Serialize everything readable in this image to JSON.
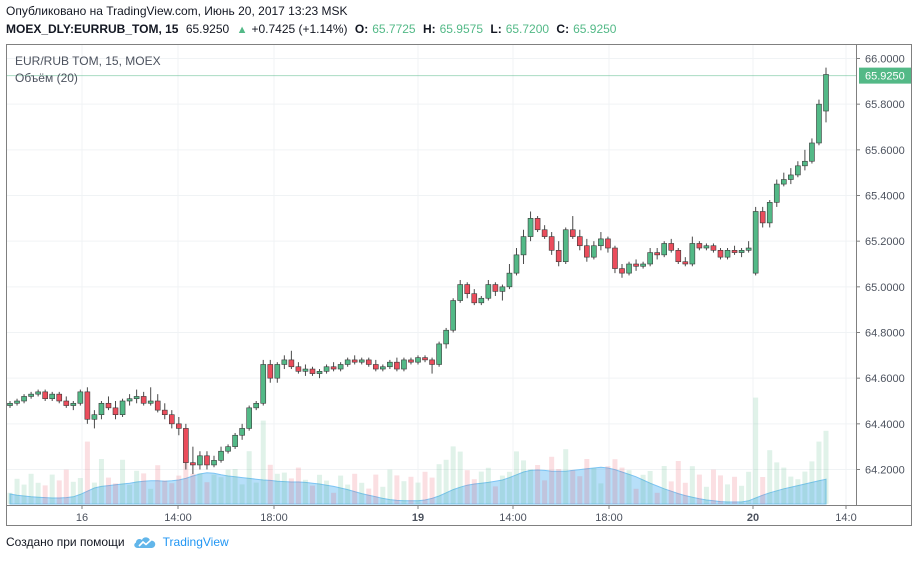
{
  "header": {
    "published": "Опубликовано на TradingView.com, Июнь 20, 2017 13:23 MSK",
    "symbol": "MOEX_DLY:EURRUB_TOM, 15",
    "last": "65.9250",
    "change": "+0.7425 (+1.14%)",
    "o_label": "O:",
    "o_value": "65.7725",
    "h_label": "H:",
    "h_value": "65.9575",
    "l_label": "L:",
    "l_value": "65.7200",
    "c_label": "C:",
    "c_value": "65.9250"
  },
  "legend": {
    "title": "EUR/RUB TOM, 15, MOEX",
    "volume": "Объём (20)"
  },
  "footer": {
    "created": "Создано при помощи",
    "brand": "TradingView"
  },
  "colors": {
    "up": "#53b987",
    "down": "#eb4d5c",
    "volume_area": "#7cc4f4",
    "grid": "#f0f3f5"
  },
  "chart_data": {
    "type": "candlestick",
    "price_ticks": [
      "66.0000",
      "65.8000",
      "65.6000",
      "65.4000",
      "65.2000",
      "65.0000",
      "64.8000",
      "64.6000",
      "64.4000",
      "64.2000"
    ],
    "time_ticks": [
      "16",
      "14:00",
      "18:00",
      "19",
      "14:00",
      "18:00",
      "20",
      "14:0"
    ],
    "last_price_label": "65.9250",
    "ylim": [
      64.05,
      66.05
    ],
    "candles": [
      [
        64.48,
        64.5,
        64.47,
        64.49
      ],
      [
        64.49,
        64.51,
        64.48,
        64.5
      ],
      [
        64.5,
        64.53,
        64.49,
        64.52
      ],
      [
        64.52,
        64.54,
        64.51,
        64.53
      ],
      [
        64.53,
        64.55,
        64.52,
        64.54
      ],
      [
        64.54,
        64.55,
        64.5,
        64.51
      ],
      [
        64.51,
        64.54,
        64.5,
        64.53
      ],
      [
        64.53,
        64.54,
        64.49,
        64.5
      ],
      [
        64.5,
        64.52,
        64.47,
        64.48
      ],
      [
        64.48,
        64.5,
        64.46,
        64.49
      ],
      [
        64.49,
        64.55,
        64.48,
        64.54
      ],
      [
        64.54,
        64.56,
        64.4,
        64.42
      ],
      [
        64.42,
        64.46,
        64.38,
        64.44
      ],
      [
        64.44,
        64.5,
        64.42,
        64.49
      ],
      [
        64.49,
        64.52,
        64.46,
        64.47
      ],
      [
        64.47,
        64.5,
        64.42,
        64.44
      ],
      [
        64.44,
        64.51,
        64.43,
        64.5
      ],
      [
        64.5,
        64.53,
        64.48,
        64.51
      ],
      [
        64.51,
        64.55,
        64.49,
        64.52
      ],
      [
        64.52,
        64.54,
        64.48,
        64.49
      ],
      [
        64.49,
        64.56,
        64.48,
        64.5
      ],
      [
        64.5,
        64.53,
        64.45,
        64.46
      ],
      [
        64.46,
        64.49,
        64.42,
        64.44
      ],
      [
        64.44,
        64.46,
        64.38,
        64.4
      ],
      [
        64.4,
        64.43,
        64.35,
        64.38
      ],
      [
        64.38,
        64.4,
        64.2,
        64.23
      ],
      [
        64.23,
        64.3,
        64.18,
        64.22
      ],
      [
        64.22,
        64.28,
        64.2,
        64.26
      ],
      [
        64.26,
        64.28,
        64.2,
        64.22
      ],
      [
        64.22,
        64.26,
        64.21,
        64.24
      ],
      [
        64.24,
        64.3,
        64.23,
        64.28
      ],
      [
        64.28,
        64.31,
        64.27,
        64.3
      ],
      [
        64.3,
        64.36,
        64.29,
        64.35
      ],
      [
        64.35,
        64.4,
        64.33,
        64.38
      ],
      [
        64.38,
        64.48,
        64.37,
        64.47
      ],
      [
        64.47,
        64.5,
        64.46,
        64.49
      ],
      [
        64.49,
        64.68,
        64.48,
        64.66
      ],
      [
        64.66,
        64.68,
        64.58,
        64.6
      ],
      [
        64.6,
        64.67,
        64.58,
        64.66
      ],
      [
        64.66,
        64.7,
        64.64,
        64.68
      ],
      [
        64.68,
        64.72,
        64.64,
        64.65
      ],
      [
        64.65,
        64.67,
        64.62,
        64.63
      ],
      [
        64.63,
        64.66,
        64.61,
        64.64
      ],
      [
        64.64,
        64.65,
        64.61,
        64.62
      ],
      [
        64.62,
        64.64,
        64.6,
        64.63
      ],
      [
        64.63,
        64.66,
        64.62,
        64.65
      ],
      [
        64.65,
        64.67,
        64.63,
        64.64
      ],
      [
        64.64,
        64.67,
        64.63,
        64.66
      ],
      [
        64.66,
        64.69,
        64.65,
        64.68
      ],
      [
        64.68,
        64.7,
        64.66,
        64.67
      ],
      [
        64.67,
        64.69,
        64.66,
        64.68
      ],
      [
        64.68,
        64.69,
        64.65,
        64.66
      ],
      [
        64.66,
        64.68,
        64.63,
        64.64
      ],
      [
        64.64,
        64.66,
        64.63,
        64.65
      ],
      [
        64.65,
        64.68,
        64.64,
        64.67
      ],
      [
        64.67,
        64.69,
        64.63,
        64.64
      ],
      [
        64.64,
        64.69,
        64.63,
        64.68
      ],
      [
        64.68,
        64.69,
        64.66,
        64.67
      ],
      [
        64.67,
        64.7,
        64.66,
        64.69
      ],
      [
        64.69,
        64.7,
        64.67,
        64.68
      ],
      [
        64.68,
        64.69,
        64.62,
        64.66
      ],
      [
        64.66,
        64.76,
        64.65,
        64.75
      ],
      [
        64.75,
        64.82,
        64.73,
        64.81
      ],
      [
        64.81,
        64.95,
        64.8,
        64.94
      ],
      [
        64.94,
        65.03,
        64.93,
        65.01
      ],
      [
        65.01,
        65.02,
        64.95,
        64.97
      ],
      [
        64.97,
        64.99,
        64.92,
        64.93
      ],
      [
        64.93,
        64.96,
        64.92,
        64.95
      ],
      [
        64.95,
        65.03,
        64.94,
        65.01
      ],
      [
        65.01,
        65.02,
        64.96,
        64.98
      ],
      [
        64.98,
        65.01,
        64.94,
        65.0
      ],
      [
        65.0,
        65.1,
        64.99,
        65.06
      ],
      [
        65.06,
        65.17,
        65.05,
        65.14
      ],
      [
        65.14,
        65.25,
        65.1,
        65.22
      ],
      [
        65.22,
        65.33,
        65.2,
        65.3
      ],
      [
        65.3,
        65.31,
        65.24,
        65.25
      ],
      [
        65.25,
        65.27,
        65.21,
        65.22
      ],
      [
        65.22,
        65.24,
        65.14,
        65.16
      ],
      [
        65.16,
        65.2,
        65.09,
        65.11
      ],
      [
        65.11,
        65.26,
        65.1,
        65.25
      ],
      [
        65.25,
        65.31,
        65.21,
        65.22
      ],
      [
        65.22,
        65.25,
        65.16,
        65.18
      ],
      [
        65.18,
        65.21,
        65.11,
        65.13
      ],
      [
        65.13,
        65.2,
        65.12,
        65.18
      ],
      [
        65.18,
        65.24,
        65.16,
        65.21
      ],
      [
        65.21,
        65.22,
        65.15,
        65.17
      ],
      [
        65.17,
        65.18,
        65.06,
        65.08
      ],
      [
        65.08,
        65.1,
        65.04,
        65.06
      ],
      [
        65.06,
        65.11,
        65.05,
        65.1
      ],
      [
        65.1,
        65.12,
        65.07,
        65.09
      ],
      [
        65.09,
        65.11,
        65.08,
        65.1
      ],
      [
        65.1,
        65.17,
        65.09,
        65.15
      ],
      [
        65.15,
        65.17,
        65.12,
        65.14
      ],
      [
        65.14,
        65.2,
        65.13,
        65.19
      ],
      [
        65.19,
        65.21,
        65.15,
        65.16
      ],
      [
        65.16,
        65.17,
        65.1,
        65.11
      ],
      [
        65.11,
        65.13,
        65.09,
        65.1
      ],
      [
        65.1,
        65.22,
        65.09,
        65.19
      ],
      [
        65.19,
        65.2,
        65.16,
        65.17
      ],
      [
        65.17,
        65.19,
        65.16,
        65.18
      ],
      [
        65.18,
        65.19,
        65.15,
        65.16
      ],
      [
        65.16,
        65.17,
        65.12,
        65.13
      ],
      [
        65.13,
        65.17,
        65.12,
        65.16
      ],
      [
        65.16,
        65.18,
        65.14,
        65.15
      ],
      [
        65.15,
        65.17,
        65.13,
        65.16
      ],
      [
        65.16,
        65.2,
        65.15,
        65.17
      ],
      [
        65.06,
        65.35,
        65.05,
        65.33
      ],
      [
        65.33,
        65.35,
        65.26,
        65.28
      ],
      [
        65.28,
        65.38,
        65.26,
        65.37
      ],
      [
        65.37,
        65.47,
        65.35,
        65.45
      ],
      [
        65.45,
        65.5,
        65.44,
        65.47
      ],
      [
        65.47,
        65.52,
        65.45,
        65.49
      ],
      [
        65.49,
        65.55,
        65.48,
        65.53
      ],
      [
        65.53,
        65.6,
        65.51,
        65.55
      ],
      [
        65.55,
        65.65,
        65.54,
        65.63
      ],
      [
        65.63,
        65.82,
        65.62,
        65.8
      ],
      [
        65.77,
        65.96,
        65.72,
        65.93
      ]
    ],
    "volume_sma": [
      0.25,
      0.22,
      0.2,
      0.18,
      0.17,
      0.16,
      0.15,
      0.15,
      0.16,
      0.18,
      0.24,
      0.32,
      0.4,
      0.44,
      0.46,
      0.48,
      0.5,
      0.52,
      0.55,
      0.57,
      0.58,
      0.58,
      0.57,
      0.58,
      0.6,
      0.64,
      0.7,
      0.75,
      0.78,
      0.77,
      0.73,
      0.7,
      0.68,
      0.66,
      0.64,
      0.62,
      0.6,
      0.59,
      0.57,
      0.56,
      0.55,
      0.55,
      0.54,
      0.52,
      0.5,
      0.47,
      0.44,
      0.4,
      0.36,
      0.31,
      0.26,
      0.22,
      0.18,
      0.14,
      0.11,
      0.09,
      0.08,
      0.08,
      0.08,
      0.1,
      0.14,
      0.2,
      0.28,
      0.36,
      0.42,
      0.47,
      0.5,
      0.52,
      0.54,
      0.57,
      0.6,
      0.66,
      0.73,
      0.8,
      0.84,
      0.85,
      0.84,
      0.82,
      0.82,
      0.82,
      0.84,
      0.86,
      0.88,
      0.9,
      0.92,
      0.9,
      0.86,
      0.8,
      0.74,
      0.68,
      0.6,
      0.52,
      0.45,
      0.38,
      0.32,
      0.26,
      0.21,
      0.17,
      0.13,
      0.1,
      0.08,
      0.06,
      0.05,
      0.05,
      0.05,
      0.08,
      0.15,
      0.22,
      0.28,
      0.33,
      0.38,
      0.42,
      0.46,
      0.5,
      0.54,
      0.58,
      0.62
    ]
  }
}
